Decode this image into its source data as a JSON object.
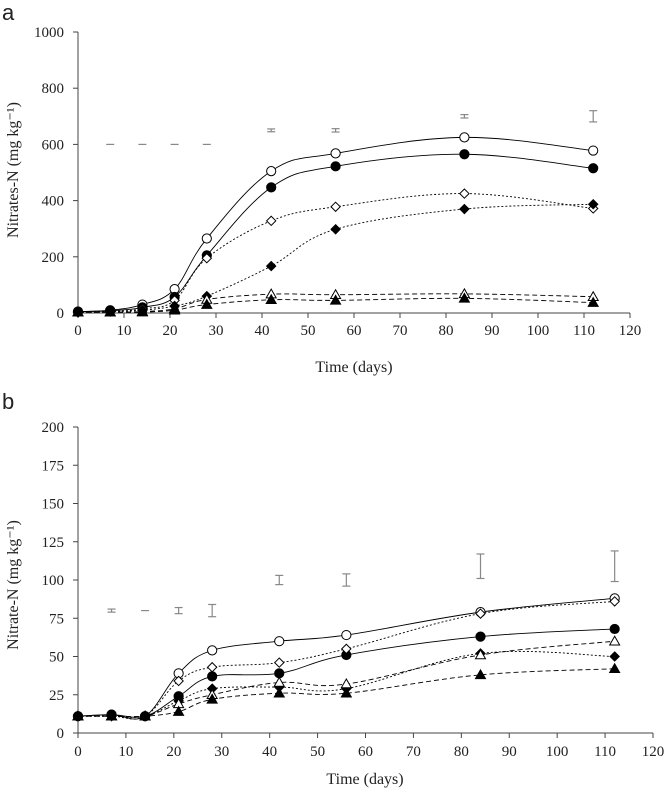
{
  "chart_data": [
    {
      "type": "line",
      "panel": "a",
      "title": "",
      "xlabel": "Time (days)",
      "ylabel": "Nitrates-N (mg kg⁻¹)",
      "xlim": [
        0,
        120
      ],
      "ylim": [
        0,
        1000
      ],
      "xticks": [
        0,
        10,
        20,
        30,
        40,
        50,
        60,
        70,
        80,
        90,
        100,
        110,
        120
      ],
      "yticks": [
        0,
        200,
        400,
        600,
        800,
        1000
      ],
      "x": [
        0,
        7,
        14,
        21,
        28,
        42,
        56,
        84,
        112
      ],
      "series": [
        {
          "name": "open-circle",
          "marker": "open-circle",
          "dash": "solid",
          "values": [
            5,
            10,
            30,
            85,
            265,
            505,
            568,
            625,
            578
          ]
        },
        {
          "name": "filled-circle",
          "marker": "filled-circle",
          "dash": "solid",
          "values": [
            5,
            8,
            20,
            57,
            205,
            447,
            522,
            565,
            515
          ]
        },
        {
          "name": "open-diamond",
          "marker": "open-diamond",
          "dash": "dotted",
          "values": [
            3,
            5,
            15,
            45,
            195,
            328,
            378,
            425,
            372
          ]
        },
        {
          "name": "filled-diamond",
          "marker": "filled-diamond",
          "dash": "dotted",
          "values": [
            3,
            5,
            10,
            25,
            60,
            167,
            298,
            370,
            387
          ]
        },
        {
          "name": "open-triangle",
          "marker": "open-triangle",
          "dash": "dashed",
          "values": [
            3,
            3,
            5,
            15,
            48,
            67,
            65,
            68,
            58
          ]
        },
        {
          "name": "filled-triangle",
          "marker": "filled-triangle",
          "dash": "dashed",
          "values": [
            3,
            3,
            3,
            10,
            30,
            47,
            45,
            52,
            37
          ]
        }
      ],
      "error_bars": [
        {
          "x": 7,
          "y": 600,
          "half": 0
        },
        {
          "x": 14,
          "y": 600,
          "half": 0
        },
        {
          "x": 21,
          "y": 600,
          "half": 0
        },
        {
          "x": 28,
          "y": 600,
          "half": 0
        },
        {
          "x": 42,
          "y": 650,
          "half": 5
        },
        {
          "x": 56,
          "y": 650,
          "half": 6
        },
        {
          "x": 84,
          "y": 700,
          "half": 6
        },
        {
          "x": 112,
          "y": 700,
          "half": 20
        }
      ]
    },
    {
      "type": "line",
      "panel": "b",
      "title": "",
      "xlabel": "Time (days)",
      "ylabel": "Nitrate-N (mg kg⁻¹)",
      "xlim": [
        0,
        120
      ],
      "ylim": [
        0,
        200
      ],
      "xticks": [
        0,
        10,
        20,
        30,
        40,
        50,
        60,
        70,
        80,
        90,
        100,
        110,
        120
      ],
      "yticks": [
        0,
        25,
        50,
        75,
        100,
        125,
        150,
        175,
        200
      ],
      "x": [
        0,
        7,
        14,
        21,
        28,
        42,
        56,
        84,
        112
      ],
      "series": [
        {
          "name": "open-circle",
          "marker": "open-circle",
          "dash": "solid",
          "values": [
            11,
            12,
            11,
            39,
            54,
            60,
            64,
            79,
            88
          ]
        },
        {
          "name": "filled-circle",
          "marker": "filled-circle",
          "dash": "solid",
          "values": [
            11,
            12,
            11,
            24,
            37,
            39,
            51,
            63,
            68
          ]
        },
        {
          "name": "open-diamond",
          "marker": "open-diamond",
          "dash": "dotted",
          "values": [
            11,
            11,
            11,
            34,
            43,
            46,
            55,
            78,
            86
          ]
        },
        {
          "name": "filled-diamond",
          "marker": "filled-diamond",
          "dash": "dotted",
          "values": [
            11,
            11,
            11,
            21,
            29,
            30,
            29,
            52,
            50
          ]
        },
        {
          "name": "open-triangle",
          "marker": "open-triangle",
          "dash": "dashed",
          "values": [
            11,
            11,
            11,
            19,
            25,
            33,
            32,
            51,
            60
          ]
        },
        {
          "name": "filled-triangle",
          "marker": "filled-triangle",
          "dash": "dashed",
          "values": [
            11,
            11,
            11,
            14,
            22,
            26,
            26,
            38,
            42
          ]
        }
      ],
      "error_bars": [
        {
          "x": 7,
          "y": 80,
          "half": 1
        },
        {
          "x": 14,
          "y": 80,
          "half": 0
        },
        {
          "x": 21,
          "y": 80,
          "half": 2
        },
        {
          "x": 28,
          "y": 80,
          "half": 4
        },
        {
          "x": 42,
          "y": 100,
          "half": 3
        },
        {
          "x": 56,
          "y": 100,
          "half": 4
        },
        {
          "x": 84,
          "y": 109,
          "half": 8
        },
        {
          "x": 112,
          "y": 109,
          "half": 10
        }
      ]
    }
  ]
}
